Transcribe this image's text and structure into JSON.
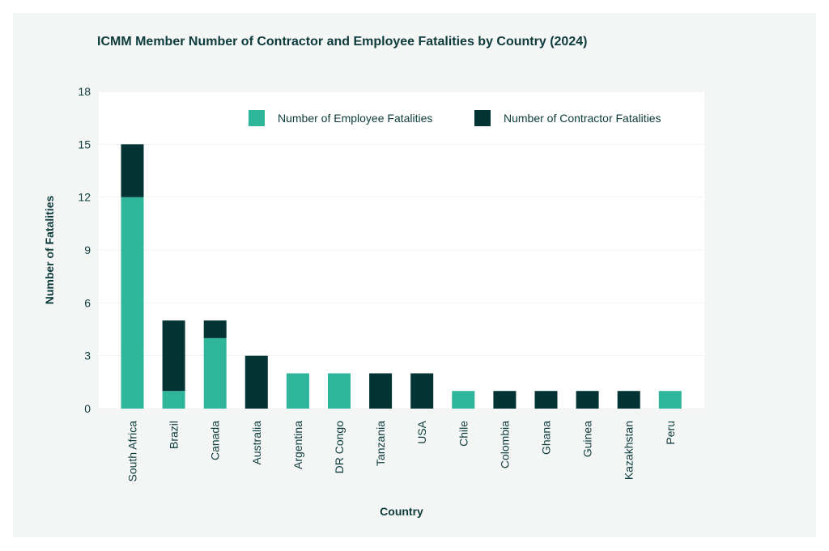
{
  "chart_data": {
    "type": "bar",
    "stacked": true,
    "title": "ICMM Member Number of Contractor and Employee Fatalities by Country (2024)",
    "xlabel": "Country",
    "ylabel": "Number of Fatalities",
    "ylim": [
      0,
      18
    ],
    "yticks": [
      0,
      3,
      6,
      9,
      12,
      15,
      18
    ],
    "grid": true,
    "legend_position": "top-right",
    "categories": [
      "South Africa",
      "Brazil",
      "Canada",
      "Australia",
      "Argentina",
      "DR Congo",
      "Tanzania",
      "USA",
      "Chile",
      "Colombia",
      "Ghana",
      "Guinea",
      "Kazakhstan",
      "Peru"
    ],
    "series": [
      {
        "name": "Number of Employee Fatalities",
        "color": "#2fb59a",
        "values": [
          12,
          1,
          4,
          0,
          2,
          2,
          0,
          0,
          1,
          0,
          0,
          0,
          0,
          1
        ]
      },
      {
        "name": "Number of Contractor Fatalities",
        "color": "#033333",
        "values": [
          3,
          4,
          1,
          3,
          0,
          0,
          2,
          2,
          0,
          1,
          1,
          1,
          1,
          0
        ]
      }
    ]
  }
}
